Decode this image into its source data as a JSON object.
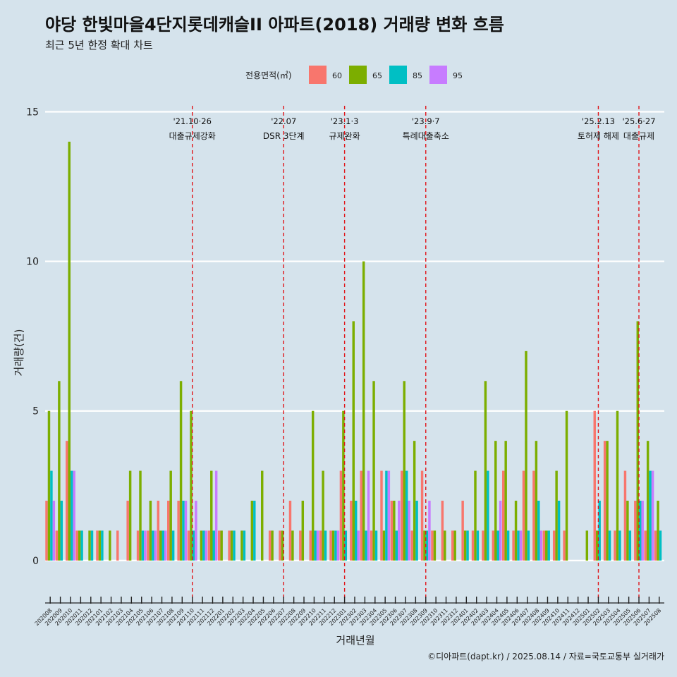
{
  "chart_data": {
    "type": "bar",
    "title": "야당 한빛마을4단지롯데캐슬II 아파트(2018) 거래량 변화 흐름",
    "subtitle": "최근 5년 한정 확대 차트",
    "xlabel": "거래년월",
    "ylabel": "거래량(건)",
    "ylim": [
      -1.3,
      15.2
    ],
    "yticks": [
      0,
      5,
      10,
      15
    ],
    "grid": true,
    "legend": {
      "title": "전용면적(㎡)",
      "position": "top"
    },
    "caption": "©디아파트(dapt.kr) / 2025.08.14 / 자료=국토교통부 실거래가",
    "categories": [
      "202008",
      "202009",
      "202010",
      "202011",
      "202012",
      "202101",
      "202102",
      "202103",
      "202104",
      "202105",
      "202106",
      "202107",
      "202108",
      "202109",
      "202110",
      "202111",
      "202112",
      "202201",
      "202202",
      "202203",
      "202204",
      "202205",
      "202206",
      "202207",
      "202208",
      "202209",
      "202210",
      "202211",
      "202212",
      "202301",
      "202302",
      "202303",
      "202304",
      "202305",
      "202306",
      "202307",
      "202308",
      "202309",
      "202310",
      "202311",
      "202312",
      "202401",
      "202402",
      "202403",
      "202404",
      "202405",
      "202406",
      "202407",
      "202408",
      "202409",
      "202410",
      "202411",
      "202412",
      "202501",
      "202502",
      "202503",
      "202504",
      "202505",
      "202506",
      "202507",
      "202508"
    ],
    "series": [
      {
        "name": "60",
        "color": "#F8766D",
        "values": [
          2,
          1,
          4,
          1,
          0,
          1,
          0,
          1,
          2,
          1,
          1,
          2,
          2,
          2,
          1,
          0,
          1,
          1,
          1,
          0,
          0,
          0,
          1,
          1,
          2,
          1,
          1,
          1,
          1,
          3,
          2,
          3,
          1,
          3,
          2,
          3,
          1,
          3,
          1,
          2,
          1,
          2,
          1,
          1,
          1,
          3,
          1,
          3,
          3,
          1,
          1,
          1,
          0,
          0,
          5,
          4,
          1,
          3,
          2,
          1,
          1
        ]
      },
      {
        "name": "65",
        "color": "#7CAE00",
        "values": [
          5,
          6,
          14,
          1,
          1,
          1,
          1,
          0,
          3,
          3,
          2,
          1,
          3,
          6,
          5,
          1,
          3,
          1,
          1,
          1,
          2,
          3,
          1,
          1,
          1,
          2,
          5,
          3,
          1,
          5,
          8,
          10,
          6,
          1,
          2,
          6,
          4,
          1,
          1,
          1,
          1,
          1,
          3,
          6,
          4,
          4,
          2,
          7,
          4,
          1,
          3,
          5,
          0,
          1,
          1,
          4,
          5,
          2,
          8,
          4,
          2
        ]
      },
      {
        "name": "85",
        "color": "#00BFC4",
        "values": [
          3,
          2,
          3,
          1,
          1,
          1,
          0,
          0,
          0,
          1,
          1,
          1,
          1,
          2,
          1,
          1,
          1,
          0,
          1,
          1,
          2,
          0,
          0,
          0,
          0,
          0,
          1,
          1,
          1,
          1,
          2,
          1,
          1,
          3,
          1,
          3,
          2,
          1,
          0,
          0,
          0,
          1,
          1,
          3,
          1,
          1,
          1,
          1,
          2,
          1,
          2,
          0,
          0,
          0,
          2,
          1,
          1,
          1,
          2,
          3,
          1
        ]
      },
      {
        "name": "95",
        "color": "#C77CFF",
        "values": [
          2,
          0,
          3,
          0,
          0,
          0,
          0,
          0,
          0,
          1,
          1,
          1,
          0,
          2,
          2,
          1,
          3,
          0,
          0,
          0,
          0,
          0,
          0,
          0,
          0,
          0,
          1,
          0,
          1,
          0,
          1,
          3,
          0,
          3,
          2,
          2,
          0,
          2,
          0,
          0,
          0,
          0,
          0,
          0,
          2,
          0,
          1,
          0,
          1,
          0,
          0,
          0,
          0,
          0,
          0,
          0,
          0,
          0,
          2,
          3,
          0
        ]
      }
    ],
    "events": [
      {
        "date": "'21.10·26",
        "label": "대출규제강화",
        "index": 14
      },
      {
        "date": "'22.07",
        "label": "DSR 3단계",
        "index": 23
      },
      {
        "date": "'23.1·3",
        "label": "규제완화",
        "index": 29
      },
      {
        "date": "'23.9·7",
        "label": "특례대출축소",
        "index": 37
      },
      {
        "date": "'25.2.13",
        "label": "토허제 해제",
        "index": 54
      },
      {
        "date": "'25.6·27",
        "label": "대출규제",
        "index": 58
      }
    ]
  }
}
